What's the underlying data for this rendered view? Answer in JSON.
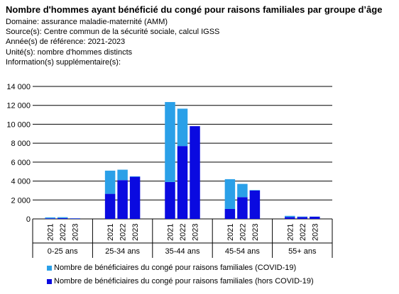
{
  "header": {
    "title": "Nombre d'hommes ayant bénéficié du congé pour raisons familiales par groupe d’âge",
    "domain": "Domaine: assurance maladie-maternité (AMM)",
    "source": "Source(s): Centre commun de la sécurité sociale, calcul IGSS",
    "years": "Année(s) de référence: 2021-2023",
    "unit": "Unité(s): nombre d'hommes distincts",
    "info": "Information(s) supplémentaire(s):"
  },
  "colors": {
    "covid": "#2aa0e8",
    "hors_covid": "#0a0ae0"
  },
  "chart_data": {
    "type": "bar",
    "stacked": true,
    "title": "Nombre d'hommes ayant bénéficié du congé pour raisons familiales par groupe d’âge",
    "ylim": [
      0,
      14000
    ],
    "yticks": [
      0,
      2000,
      4000,
      6000,
      8000,
      10000,
      12000,
      14000
    ],
    "ytick_labels": [
      "0",
      "2 000",
      "4 000",
      "6 000",
      "8 000",
      "10 000",
      "12 000",
      "14 000"
    ],
    "grid": true,
    "legend_position": "bottom",
    "groups": [
      {
        "label": "0-25 ans",
        "years": [
          "2021",
          "2022",
          "2023"
        ]
      },
      {
        "label": "25-34 ans",
        "years": [
          "2021",
          "2022",
          "2023"
        ]
      },
      {
        "label": "35-44 ans",
        "years": [
          "2021",
          "2022",
          "2023"
        ]
      },
      {
        "label": "45-54 ans",
        "years": [
          "2021",
          "2022",
          "2023"
        ]
      },
      {
        "label": "55+ ans",
        "years": [
          "2021",
          "2022",
          "2023"
        ]
      }
    ],
    "series": [
      {
        "name": "Nombre de bénéficiaires du congé pour raisons familiales (hors COVID-19)",
        "color": "#0a0ae0",
        "values": [
          60,
          80,
          50,
          2650,
          4100,
          4450,
          3900,
          7700,
          9800,
          1050,
          2300,
          3000,
          200,
          200,
          230
        ]
      },
      {
        "name": "Nombre de bénéficiaires du congé pour raisons familiales (COVID-19)",
        "color": "#2aa0e8",
        "values": [
          100,
          100,
          20,
          2450,
          1100,
          50,
          8450,
          3950,
          0,
          3150,
          1400,
          50,
          120,
          50,
          20
        ]
      }
    ]
  }
}
